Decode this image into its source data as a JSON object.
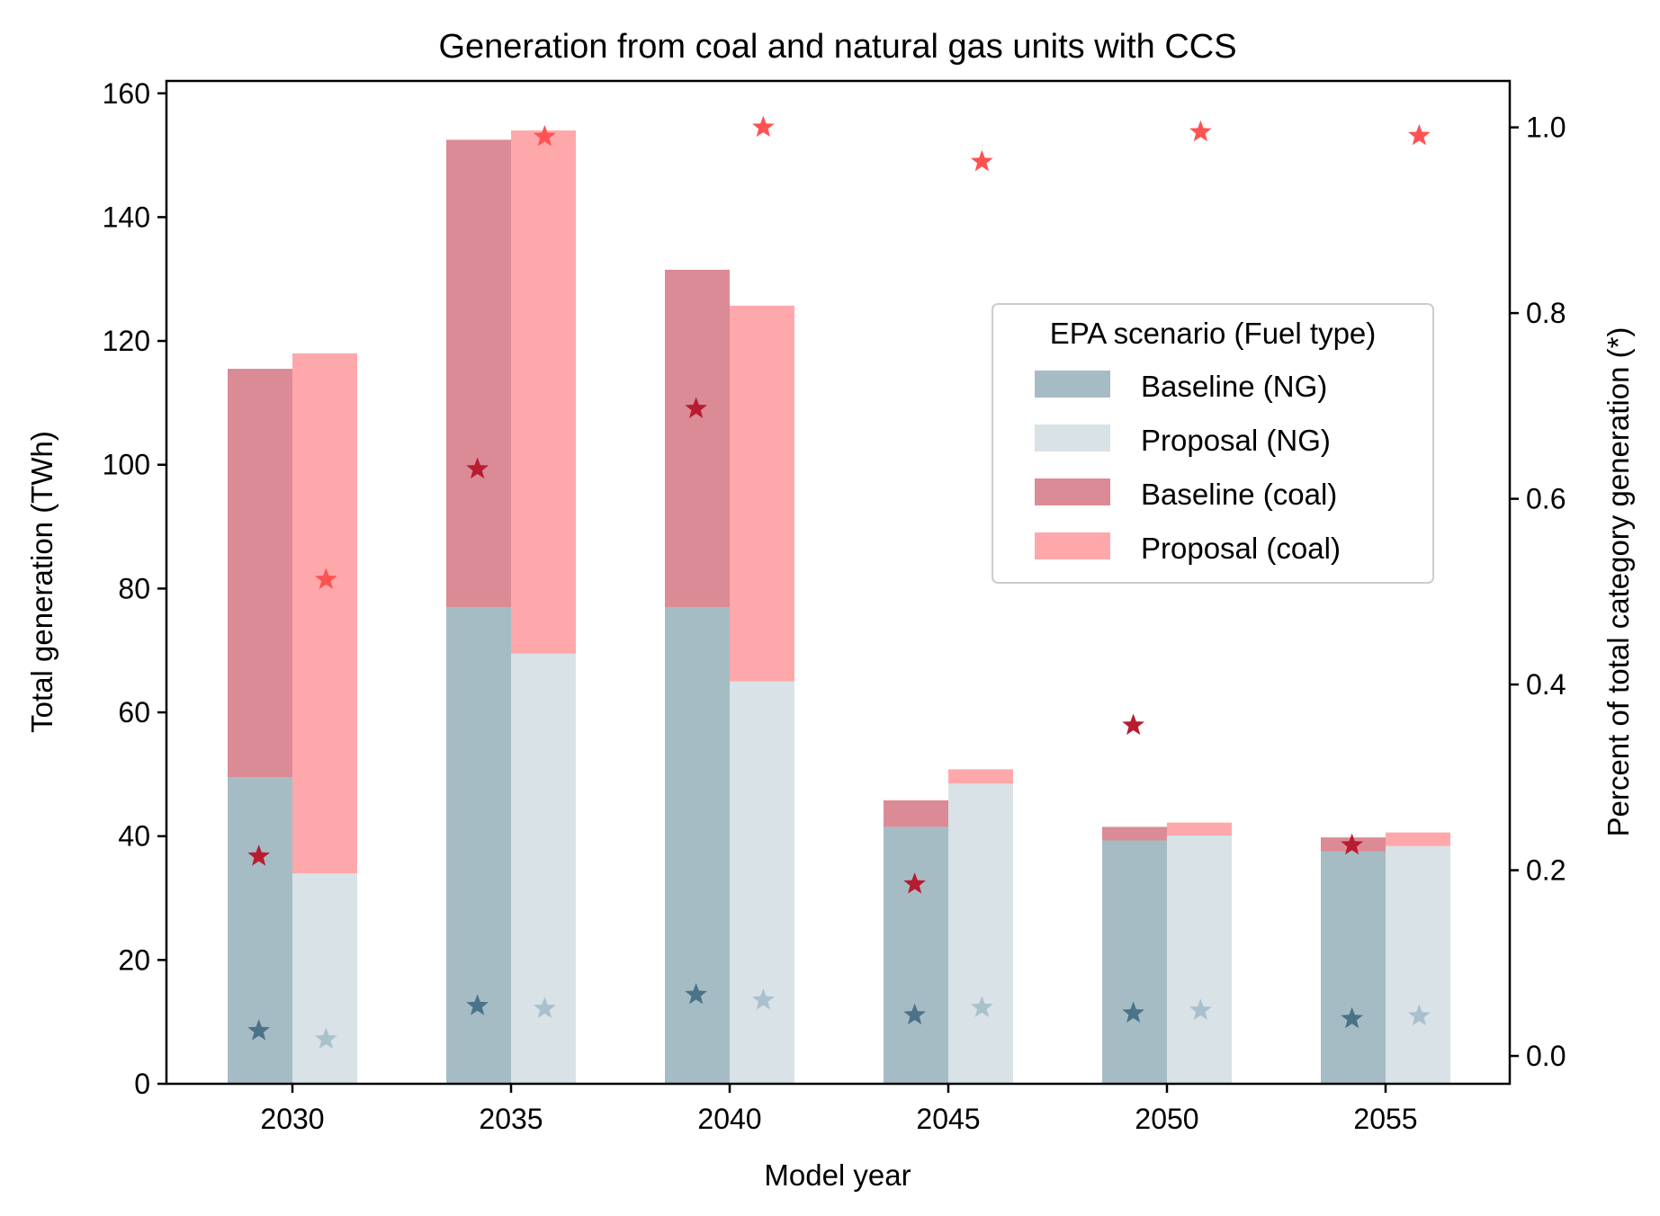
{
  "chart_data": {
    "type": "bar",
    "title": "Generation from coal and natural gas units with CCS",
    "xlabel": "Model year",
    "ylabel": "Total generation (TWh)",
    "ylabel_right": "Percent of total category generation (*)",
    "categories": [
      "2030",
      "2035",
      "2040",
      "2045",
      "2050",
      "2055"
    ],
    "ylim": [
      0,
      162
    ],
    "yticks": [
      "0",
      "20",
      "40",
      "60",
      "80",
      "100",
      "120",
      "140",
      "160"
    ],
    "ylim_right": [
      -0.03,
      1.05
    ],
    "yticks_right": [
      "0.0",
      "0.2",
      "0.4",
      "0.6",
      "0.8",
      "1.0"
    ],
    "stacked_bars": [
      {
        "scenario": "Baseline",
        "segments": [
          {
            "name": "Baseline (NG)",
            "color": "#a6bcc5",
            "values": [
              49.5,
              77,
              77,
              41.5,
              39.3,
              37.5
            ]
          },
          {
            "name": "Baseline (coal)",
            "color": "#db8b95",
            "values": [
              66,
              75.5,
              54.5,
              4.3,
              2.2,
              2.3
            ]
          }
        ]
      },
      {
        "scenario": "Proposal",
        "segments": [
          {
            "name": "Proposal (NG)",
            "color": "#d8e2e7",
            "values": [
              34,
              69.5,
              65,
              48.5,
              40.1,
              38.4
            ]
          },
          {
            "name": "Proposal (coal)",
            "color": "#ffa8ab",
            "values": [
              84,
              84.5,
              60.7,
              2.3,
              2.1,
              2.2
            ]
          }
        ]
      }
    ],
    "star_series": [
      {
        "name": "Baseline (NG)",
        "color": "#4a7388",
        "offset": -0.15,
        "values": [
          0.027,
          0.054,
          0.066,
          0.044,
          0.046,
          0.04
        ]
      },
      {
        "name": "Proposal (NG)",
        "color": "#a9c1cc",
        "offset": 0.15,
        "values": [
          0.018,
          0.051,
          0.06,
          0.052,
          0.049,
          0.043
        ]
      },
      {
        "name": "Baseline (coal)",
        "color": "#b81c31",
        "offset": -0.15,
        "values": [
          0.215,
          0.632,
          0.697,
          0.185,
          0.356,
          0.227
        ]
      },
      {
        "name": "Proposal (coal)",
        "color": "#ff5252",
        "offset": 0.15,
        "values": [
          0.513,
          0.99,
          1.0,
          0.963,
          0.995,
          0.991
        ]
      }
    ],
    "legend": {
      "title": "EPA scenario (Fuel type)",
      "placement": "center-right",
      "entries": [
        {
          "label": "Baseline (NG)",
          "color": "#a6bcc5"
        },
        {
          "label": "Proposal (NG)",
          "color": "#d8e2e7"
        },
        {
          "label": "Baseline (coal)",
          "color": "#db8b95"
        },
        {
          "label": "Proposal (coal)",
          "color": "#ffa8ab"
        }
      ]
    },
    "grid": false
  }
}
